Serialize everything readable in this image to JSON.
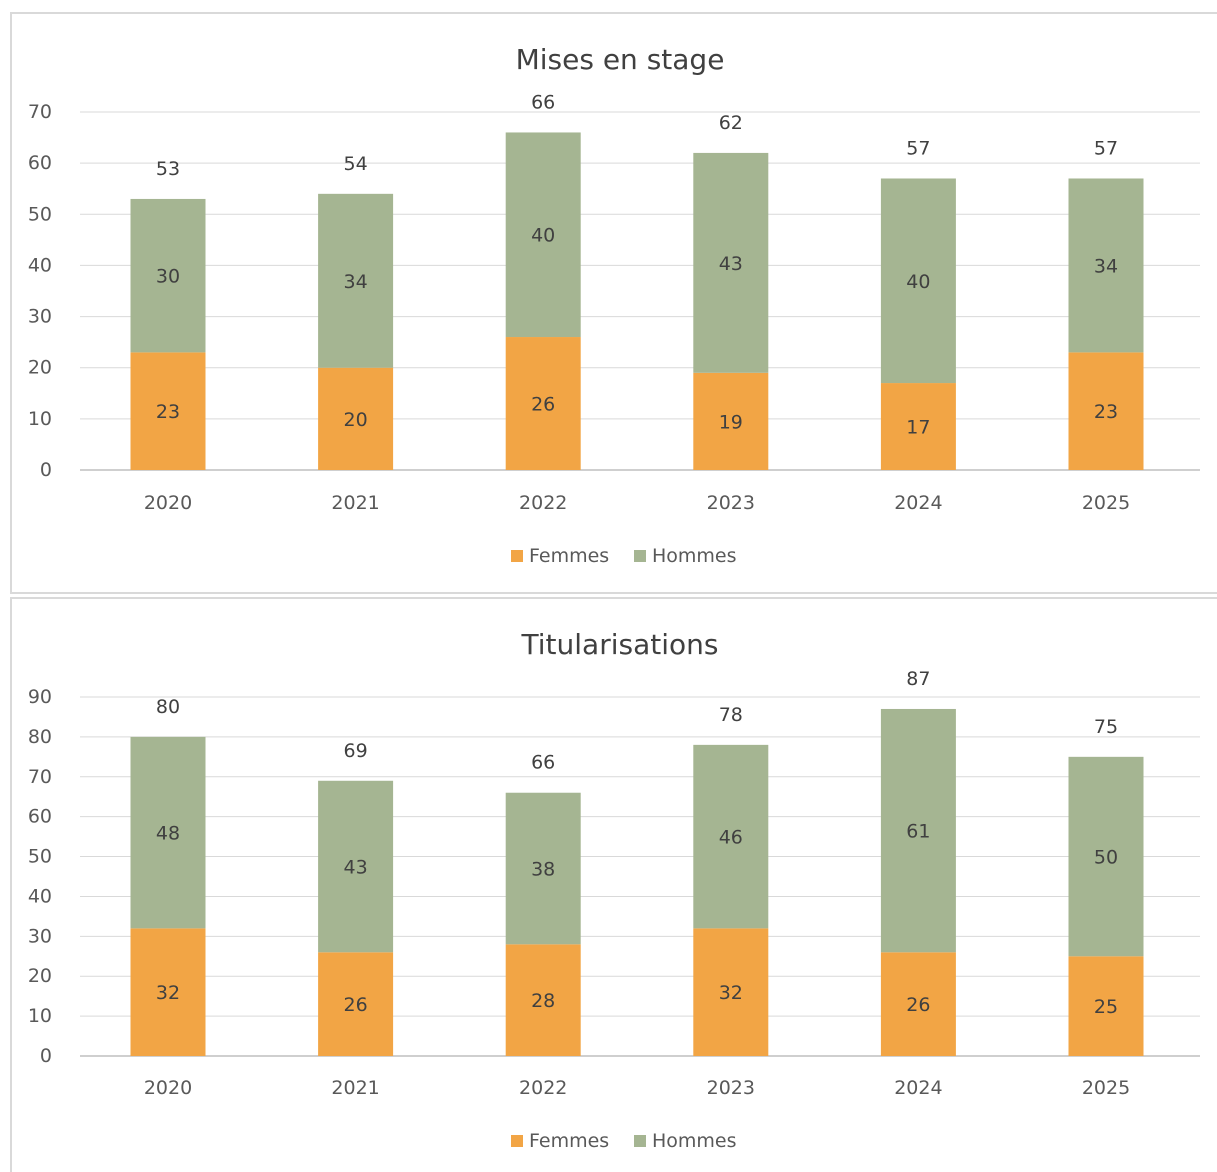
{
  "chart_data": [
    {
      "type": "bar",
      "stacked": true,
      "title": "Mises en stage",
      "categories": [
        "2020",
        "2021",
        "2022",
        "2023",
        "2024",
        "2025"
      ],
      "series": [
        {
          "name": "Femmes",
          "values": [
            23,
            20,
            26,
            19,
            17,
            23
          ],
          "color": "#F2A545"
        },
        {
          "name": "Hommes",
          "values": [
            30,
            34,
            40,
            43,
            40,
            34
          ],
          "color": "#A5B592"
        }
      ],
      "totals": [
        53,
        54,
        66,
        62,
        57,
        57
      ],
      "yticks": [
        "0",
        "10",
        "20",
        "30",
        "40",
        "50",
        "60",
        "70"
      ],
      "ylim": [
        0,
        70
      ],
      "grid": true,
      "legend": "bottom"
    },
    {
      "type": "bar",
      "stacked": true,
      "title": "Titularisations",
      "categories": [
        "2020",
        "2021",
        "2022",
        "2023",
        "2024",
        "2025"
      ],
      "series": [
        {
          "name": "Femmes",
          "values": [
            32,
            26,
            28,
            32,
            26,
            25
          ],
          "color": "#F2A545"
        },
        {
          "name": "Hommes",
          "values": [
            48,
            43,
            38,
            46,
            61,
            50
          ],
          "color": "#A5B592"
        }
      ],
      "totals": [
        80,
        69,
        66,
        78,
        87,
        75
      ],
      "yticks": [
        "0",
        "10",
        "20",
        "30",
        "40",
        "50",
        "60",
        "70",
        "80",
        "90"
      ],
      "ylim": [
        0,
        90
      ],
      "grid": true,
      "legend": "bottom"
    }
  ]
}
